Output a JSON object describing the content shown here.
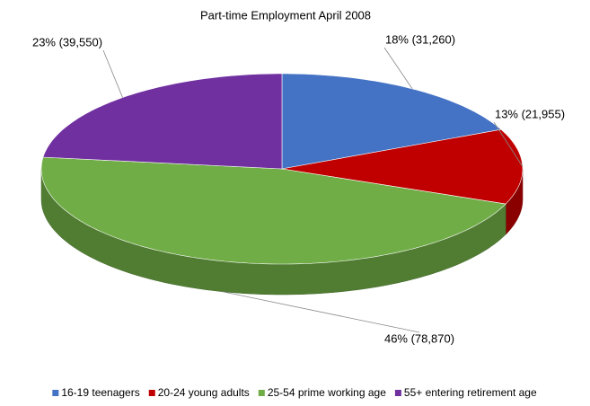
{
  "chart_data": {
    "type": "pie3d",
    "title": "Part-time  Employment  April  2008",
    "categories": [
      "16-19 teenagers",
      "20-24 young adults",
      "25-54 prime working age",
      "55+ entering retirement age"
    ],
    "values": [
      31260,
      21955,
      78870,
      39550
    ],
    "value_labels": [
      "18% (31,260)",
      "13% (21,955)",
      "46% (78,870)",
      "23% (39,550)"
    ],
    "colors": [
      "#4472c4",
      "#c00000",
      "#70ad47",
      "#7030a0"
    ],
    "legend": "bottom"
  }
}
